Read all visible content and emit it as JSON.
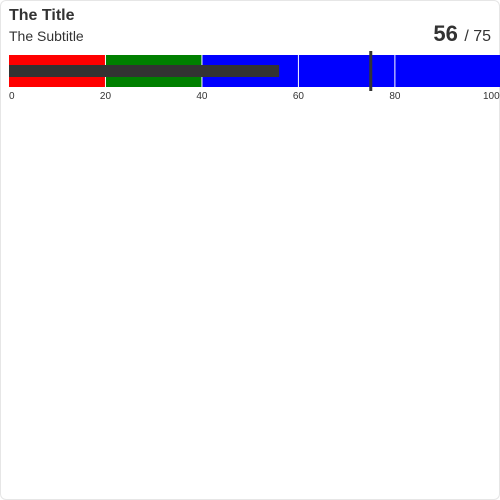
{
  "title": "The Title",
  "subtitle": "The Subtitle",
  "readout": {
    "value": "56",
    "target_text": "/ 75"
  },
  "chart_data": {
    "type": "bullet",
    "title": "The Title",
    "subtitle": "The Subtitle",
    "value": 56,
    "target": 75,
    "min": 0,
    "max": 102,
    "ranges": [
      {
        "from": 0,
        "to": 20,
        "color": "#ff0000"
      },
      {
        "from": 20,
        "to": 40,
        "color": "#008000"
      },
      {
        "from": 40,
        "to": 102,
        "color": "#0000ff"
      }
    ],
    "bar_color": "#333333",
    "target_color": "#333333",
    "ticks": [
      0,
      20,
      40,
      60,
      80,
      100
    ],
    "gridlines_at": [
      20,
      40,
      60,
      80
    ]
  }
}
